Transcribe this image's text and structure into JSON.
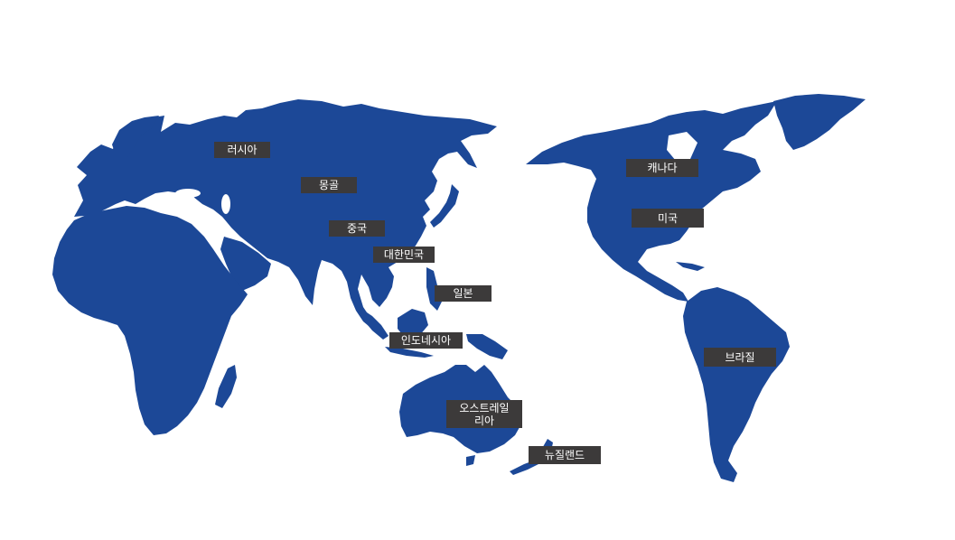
{
  "map": {
    "land_color": "#1c4897",
    "label_background": "#3c3a3a",
    "label_text_color": "#ffffff"
  },
  "labels": {
    "russia": "러시아",
    "mongolia": "몽골",
    "china": "중국",
    "korea": "대한민국",
    "japan": "일본",
    "indonesia": "인도네시아",
    "australia": "오스트레일\n리아",
    "new_zealand": "뉴질랜드",
    "canada": "캐나다",
    "usa": "미국",
    "brazil": "브라질"
  }
}
